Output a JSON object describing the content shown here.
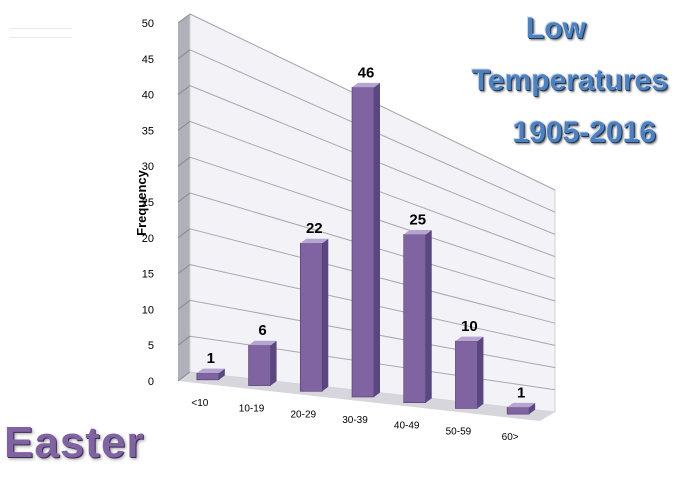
{
  "chart_data": {
    "type": "bar",
    "title": [
      "Low",
      "Temperatures",
      "1905-2016"
    ],
    "xlabel": "",
    "ylabel": "Frequency",
    "categories": [
      "<10",
      "10-19",
      "20-29",
      "30-39",
      "40-49",
      "50-59",
      "60>"
    ],
    "values": [
      1,
      6,
      22,
      46,
      25,
      10,
      1
    ],
    "ylim": [
      0,
      50
    ],
    "yticks": [
      0,
      5,
      10,
      15,
      20,
      25,
      30,
      35,
      40,
      45,
      50
    ],
    "grid": true,
    "legend": "none",
    "style": "3d-column",
    "colors": {
      "bar": "#8064a2",
      "bar_dark": "#5b4780",
      "bar_light": "#b7a5d1",
      "back_wall": "#f2f2f7",
      "side_wall": "#b0b0b8"
    }
  },
  "watermark": "Easter"
}
